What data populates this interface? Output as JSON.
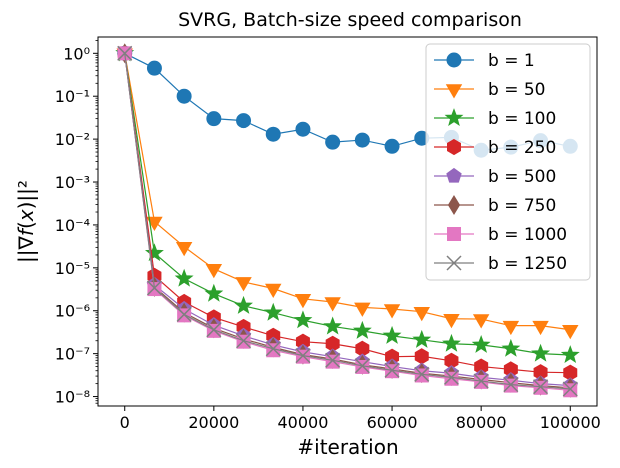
{
  "chart_data": {
    "type": "line",
    "title": "SVRG, Batch-size speed comparison",
    "xlabel": "#iteration",
    "ylabel": "||∇f(x)||²",
    "y_scale": "log",
    "xlim": [
      -6000,
      106000
    ],
    "ylim_log10": [
      -8.22,
      0.38
    ],
    "x_ticks": [
      0,
      20000,
      40000,
      60000,
      80000,
      100000
    ],
    "x_tick_labels": [
      "0",
      "20000",
      "40000",
      "60000",
      "80000",
      "100000"
    ],
    "y_ticks_exp": [
      0,
      -1,
      -2,
      -3,
      -4,
      -5,
      -6,
      -7,
      -8
    ],
    "y_tick_labels": [
      "10⁰",
      "10⁻¹",
      "10⁻²",
      "10⁻³",
      "10⁻⁴",
      "10⁻⁵",
      "10⁻⁶",
      "10⁻⁷",
      "10⁻⁸"
    ],
    "legend_position": "upper-right",
    "x": [
      0,
      6667,
      13333,
      20000,
      26667,
      33333,
      40000,
      46667,
      53333,
      60000,
      66667,
      73333,
      80000,
      86667,
      93333,
      100000
    ],
    "series": [
      {
        "name": "b = 1",
        "color": "#1f77b4",
        "marker": "circle",
        "values": [
          1.0,
          0.45,
          0.1,
          0.03,
          0.027,
          0.013,
          0.017,
          0.0085,
          0.0095,
          0.0068,
          0.0105,
          0.011,
          0.0055,
          0.0065,
          0.0092,
          0.0068
        ]
      },
      {
        "name": "b = 50",
        "color": "#ff7f0e",
        "marker": "triangle-down",
        "values": [
          1.0,
          0.00012,
          3.1e-05,
          9.5e-06,
          4.7e-06,
          3.3e-06,
          1.9e-06,
          1.6e-06,
          1.2e-06,
          1.1e-06,
          9.5e-07,
          6.5e-07,
          6.4e-07,
          4.5e-07,
          4.5e-07,
          3.6e-07
        ]
      },
      {
        "name": "b = 100",
        "color": "#2ca02c",
        "marker": "star",
        "values": [
          1.0,
          2.2e-05,
          5.6e-06,
          2.5e-06,
          1.3e-06,
          9e-07,
          6e-07,
          4.3e-07,
          3.4e-07,
          2.6e-07,
          2.1e-07,
          1.7e-07,
          1.6e-07,
          1.3e-07,
          1e-07,
          9.3e-08
        ]
      },
      {
        "name": "b = 250",
        "color": "#d62728",
        "marker": "hexagon",
        "values": [
          1.0,
          6.5e-06,
          1.6e-06,
          7e-07,
          4.2e-07,
          2.6e-07,
          1.9e-07,
          1.7e-07,
          1.3e-07,
          8.5e-08,
          8.7e-08,
          6.8e-08,
          5e-08,
          4.3e-08,
          3.7e-08,
          3.6e-08
        ]
      },
      {
        "name": "b = 500",
        "color": "#9467bd",
        "marker": "pentagon",
        "values": [
          1.0,
          4e-06,
          1.1e-06,
          4.6e-07,
          2.6e-07,
          1.6e-07,
          1.1e-07,
          8.5e-08,
          6.5e-08,
          5e-08,
          4e-08,
          3.5e-08,
          2.8e-08,
          2.4e-08,
          2e-08,
          1.8e-08
        ]
      },
      {
        "name": "b = 750",
        "color": "#8c564b",
        "marker": "diamond",
        "values": [
          1.0,
          3.6e-06,
          9e-07,
          3.9e-07,
          2.2e-07,
          1.4e-07,
          9.5e-08,
          7.5e-08,
          5.5e-08,
          4.4e-08,
          3.5e-08,
          3e-08,
          2.5e-08,
          2.1e-08,
          1.8e-08,
          1.6e-08
        ]
      },
      {
        "name": "b = 1000",
        "color": "#e377c2",
        "marker": "square",
        "values": [
          1.0,
          3.2e-06,
          7.8e-07,
          3.4e-07,
          1.9e-07,
          1.2e-07,
          8.5e-08,
          6.5e-08,
          4.9e-08,
          3.9e-08,
          3.1e-08,
          2.6e-08,
          2.2e-08,
          1.8e-08,
          1.6e-08,
          1.4e-08
        ]
      },
      {
        "name": "b = 1250",
        "color": "#7f7f7f",
        "marker": "x",
        "values": [
          1.0,
          3.4e-06,
          8.2e-07,
          3.6e-07,
          2e-07,
          1.3e-07,
          9e-08,
          7e-08,
          5.2e-08,
          4.1e-08,
          3.3e-08,
          2.8e-08,
          2.3e-08,
          1.9e-08,
          1.7e-08,
          1.5e-08
        ]
      }
    ]
  }
}
